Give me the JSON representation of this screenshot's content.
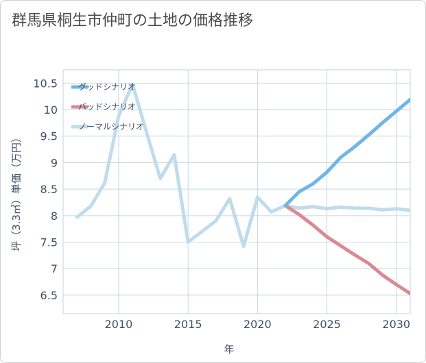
{
  "title": "群馬県桐生市仲町の土地の価格推移",
  "chart_data": {
    "type": "line",
    "title": "群馬県桐生市仲町の土地の価格推移",
    "xlabel": "年",
    "ylabel": "坪（3.3㎡）単価（万円）",
    "xlim": [
      2006,
      2031
    ],
    "ylim": [
      6.15,
      10.75
    ],
    "xticks": [
      2010,
      2015,
      2020,
      2025,
      2030
    ],
    "yticks": [
      6.5,
      7,
      7.5,
      8,
      8.5,
      9,
      9.5,
      10,
      10.5
    ],
    "ytick_labels": [
      "6.5",
      "7",
      "7.5",
      "8",
      "8.5",
      "9",
      "9.5",
      "10",
      "10.5"
    ],
    "grid": true,
    "legend_position": "top-left",
    "series": [
      {
        "name": "グッドシナリオ",
        "color": "#6fb5e8",
        "x": [
          2022,
          2023,
          2024,
          2025,
          2026,
          2027,
          2028,
          2029,
          2030,
          2031
        ],
        "values": [
          8.19,
          8.45,
          8.6,
          8.82,
          9.1,
          9.3,
          9.52,
          9.75,
          9.97,
          10.19
        ]
      },
      {
        "name": "バッドシナリオ",
        "color": "#d98a93",
        "x": [
          2022,
          2023,
          2024,
          2025,
          2026,
          2027,
          2028,
          2029,
          2030,
          2031
        ],
        "values": [
          8.19,
          8.02,
          7.82,
          7.6,
          7.43,
          7.26,
          7.1,
          6.88,
          6.7,
          6.53
        ]
      },
      {
        "name": "ノーマルシナリオ",
        "color": "#c0dcec",
        "x": [
          2007,
          2008,
          2009,
          2010,
          2011,
          2012,
          2013,
          2014,
          2015,
          2016,
          2017,
          2018,
          2019,
          2020,
          2021,
          2022,
          2023,
          2024,
          2025,
          2026,
          2027,
          2028,
          2029,
          2030,
          2031
        ],
        "values": [
          7.97,
          8.18,
          8.62,
          9.88,
          10.48,
          9.58,
          8.7,
          9.15,
          7.5,
          7.7,
          7.9,
          8.32,
          7.42,
          8.35,
          8.07,
          8.19,
          8.14,
          8.17,
          8.13,
          8.16,
          8.14,
          8.14,
          8.11,
          8.13,
          8.1
        ]
      }
    ]
  }
}
